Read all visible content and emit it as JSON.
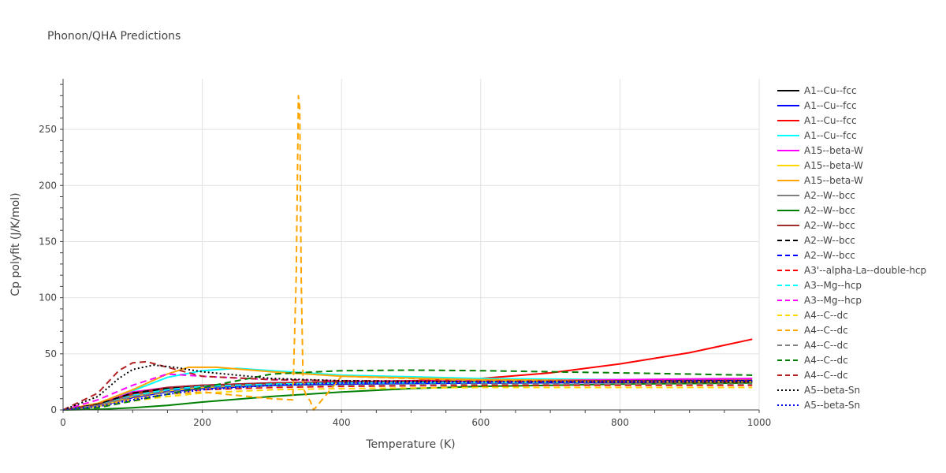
{
  "chart_data": {
    "type": "line",
    "title": "Phonon/QHA Predictions",
    "xlabel": "Temperature (K)",
    "ylabel": "Cp polyfit (J/K/mol)",
    "xlim": [
      0,
      1000
    ],
    "ylim": [
      0,
      295
    ],
    "x_ticks": [
      0,
      200,
      400,
      600,
      800,
      1000
    ],
    "y_ticks": [
      0,
      50,
      100,
      150,
      200,
      250
    ],
    "grid": true,
    "legend_position": "right",
    "series": [
      {
        "name": "A1--Cu--fcc",
        "color": "#000000",
        "dash": "solid",
        "x": [
          0,
          50,
          100,
          150,
          200,
          300,
          400,
          600,
          800,
          990
        ],
        "y": [
          0,
          4,
          13,
          18,
          21,
          23,
          24,
          24.5,
          24.8,
          25
        ]
      },
      {
        "name": "A1--Cu--fcc",
        "color": "#0000ff",
        "dash": "solid",
        "x": [
          0,
          50,
          100,
          150,
          200,
          300,
          400,
          600,
          800,
          990
        ],
        "y": [
          0,
          3,
          11,
          16,
          19,
          22,
          23,
          24,
          24.5,
          25
        ]
      },
      {
        "name": "A1--Cu--fcc",
        "color": "#ff0000",
        "dash": "solid",
        "x": [
          0,
          50,
          100,
          150,
          200,
          300,
          400,
          500,
          600,
          700,
          800,
          900,
          990
        ],
        "y": [
          0,
          4,
          14,
          19,
          22,
          24,
          25,
          26,
          28,
          33,
          41,
          51,
          63
        ]
      },
      {
        "name": "A1--Cu--fcc",
        "color": "#00ffff",
        "dash": "solid",
        "x": [
          0,
          50,
          100,
          150,
          200,
          250,
          300,
          400,
          600,
          800,
          990
        ],
        "y": [
          0,
          5,
          17,
          29,
          35,
          37,
          35,
          31,
          28,
          27,
          26
        ]
      },
      {
        "name": "A15--beta-W",
        "color": "#ff00ff",
        "dash": "solid",
        "x": [
          0,
          50,
          100,
          150,
          200,
          300,
          400,
          600,
          800,
          990
        ],
        "y": [
          0,
          5,
          16,
          20,
          22,
          24,
          25,
          26,
          27,
          28
        ]
      },
      {
        "name": "A15--beta-W",
        "color": "#ffd700",
        "dash": "solid",
        "x": [
          0,
          50,
          100,
          150,
          200,
          300,
          400,
          600,
          800,
          990
        ],
        "y": [
          0,
          3,
          12,
          17,
          20,
          23,
          24,
          25,
          25.5,
          26
        ]
      },
      {
        "name": "A15--beta-W",
        "color": "#ffa500",
        "dash": "solid",
        "x": [
          0,
          50,
          100,
          150,
          180,
          220,
          300,
          400,
          600,
          800,
          990
        ],
        "y": [
          0,
          6,
          18,
          32,
          38,
          38,
          34,
          30,
          27,
          26,
          25
        ]
      },
      {
        "name": "A2--W--bcc",
        "color": "#808080",
        "dash": "solid",
        "x": [
          0,
          50,
          100,
          150,
          200,
          300,
          400,
          600,
          800,
          990
        ],
        "y": [
          0,
          4,
          13,
          18,
          21,
          23,
          24,
          25,
          25.5,
          26
        ]
      },
      {
        "name": "A2--W--bcc",
        "color": "#008000",
        "dash": "solid",
        "x": [
          0,
          50,
          100,
          150,
          200,
          300,
          400,
          500,
          600,
          700,
          800,
          900,
          990
        ],
        "y": [
          0,
          0.5,
          2,
          4,
          7,
          12,
          16,
          19,
          21,
          22,
          23,
          23.5,
          24
        ]
      },
      {
        "name": "A2--W--bcc",
        "color": "#a52a2a",
        "dash": "solid",
        "x": [
          0,
          50,
          100,
          150,
          200,
          300,
          400,
          600,
          800,
          990
        ],
        "y": [
          0,
          5,
          15,
          20,
          22,
          24,
          25,
          25.5,
          26,
          26.5
        ]
      },
      {
        "name": "A2--W--bcc",
        "color": "#000000",
        "dash": "dash",
        "x": [
          0,
          50,
          100,
          150,
          200,
          300,
          400,
          600,
          800,
          990
        ],
        "y": [
          0,
          5,
          15,
          19,
          21,
          23,
          24,
          25,
          25.5,
          26
        ]
      },
      {
        "name": "A2--W--bcc",
        "color": "#0000ff",
        "dash": "dash",
        "x": [
          0,
          50,
          100,
          150,
          200,
          300,
          400,
          600,
          800,
          990
        ],
        "y": [
          0,
          4,
          13,
          17,
          20,
          22,
          23.5,
          24.5,
          25,
          25.5
        ]
      },
      {
        "name": "A3'--alpha-La--double-hcp",
        "color": "#ff0000",
        "dash": "dash",
        "x": [
          0,
          50,
          100,
          150,
          200,
          300,
          400,
          600,
          800,
          990
        ],
        "y": [
          0,
          4,
          12,
          16,
          18,
          20,
          21,
          22,
          22,
          22
        ]
      },
      {
        "name": "A3--Mg--hcp",
        "color": "#00ffff",
        "dash": "dash",
        "x": [
          0,
          50,
          100,
          150,
          200,
          300,
          400,
          600,
          800,
          990
        ],
        "y": [
          0,
          4,
          13,
          18,
          21,
          23,
          24,
          24.5,
          25,
          25
        ]
      },
      {
        "name": "A3--Mg--hcp",
        "color": "#ff00ff",
        "dash": "dash",
        "x": [
          0,
          50,
          100,
          150,
          200,
          300,
          400,
          600,
          800,
          990
        ],
        "y": [
          0,
          9,
          22,
          32,
          30,
          27,
          26,
          25.5,
          25,
          25
        ]
      },
      {
        "name": "A4--C--dc",
        "color": "#ffd700",
        "dash": "dash",
        "x": [
          0,
          50,
          100,
          150,
          200,
          300,
          400,
          600,
          800,
          990
        ],
        "y": [
          0,
          3,
          8,
          12,
          15,
          18,
          19,
          20,
          20,
          20
        ]
      },
      {
        "name": "A4--C--dc",
        "color": "#ffa500",
        "dash": "dash",
        "x": [
          0,
          50,
          100,
          150,
          200,
          250,
          300,
          330,
          335,
          338,
          340,
          342,
          345,
          350,
          355,
          360,
          400,
          600,
          800,
          990
        ],
        "y": [
          0,
          3,
          10,
          14,
          16,
          13,
          10,
          9,
          120,
          280,
          270,
          120,
          20,
          12,
          8,
          0,
          30,
          26,
          25,
          25
        ]
      },
      {
        "name": "A4--C--dc",
        "color": "#808080",
        "dash": "dash",
        "x": [
          0,
          50,
          100,
          150,
          200,
          300,
          400,
          600,
          800,
          990
        ],
        "y": [
          0,
          4,
          12,
          16,
          19,
          21,
          22,
          23,
          23,
          23
        ]
      },
      {
        "name": "A4--C--dc",
        "color": "#008000",
        "dash": "dash",
        "x": [
          0,
          50,
          100,
          150,
          200,
          250,
          300,
          400,
          500,
          600,
          800,
          990
        ],
        "y": [
          0,
          2,
          8,
          14,
          20,
          26,
          32,
          35,
          35.5,
          35,
          33,
          31
        ]
      },
      {
        "name": "A4--C--dc",
        "color": "#b22222",
        "dash": "dash",
        "x": [
          0,
          50,
          80,
          100,
          120,
          150,
          200,
          300,
          400,
          600,
          800,
          990
        ],
        "y": [
          0,
          15,
          35,
          42,
          43,
          38,
          30,
          27,
          26,
          25.5,
          25,
          25
        ]
      },
      {
        "name": "A5--beta-Sn",
        "color": "#000000",
        "dash": "dot",
        "x": [
          0,
          50,
          80,
          100,
          130,
          160,
          200,
          300,
          400,
          600,
          800,
          990
        ],
        "y": [
          0,
          12,
          28,
          36,
          40,
          38,
          34,
          28,
          26,
          25,
          25,
          25
        ]
      },
      {
        "name": "A5--beta-Sn",
        "color": "#0000ff",
        "dash": "dot",
        "x": [
          0,
          50,
          100,
          150,
          200,
          300,
          400,
          600,
          800,
          990
        ],
        "y": [
          0,
          3,
          9,
          14,
          18,
          22,
          24,
          25,
          25.5,
          26
        ]
      }
    ]
  }
}
